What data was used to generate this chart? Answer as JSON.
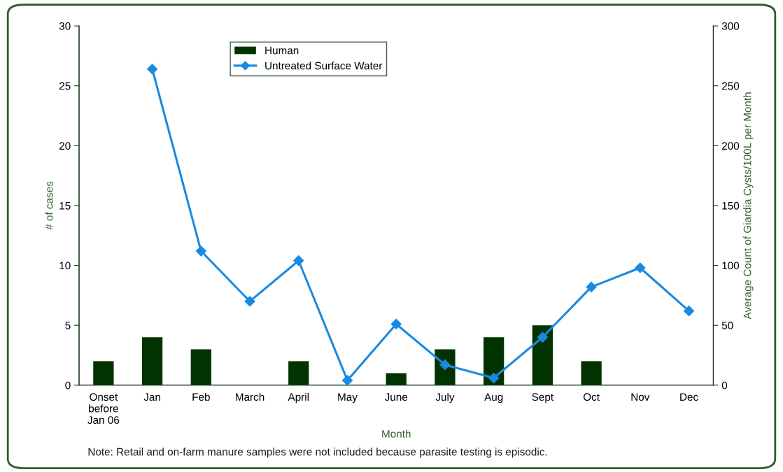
{
  "chart_data": {
    "type": "bar",
    "xlabel": "Month",
    "ylabel": "# of cases",
    "y2label": "Average Count of Giardia Cysts/100L per Month",
    "categories": [
      "Onset\nbefore\nJan 06",
      "Jan",
      "Feb",
      "March",
      "April",
      "May",
      "June",
      "July",
      "Aug",
      "Sept",
      "Oct",
      "Nov",
      "Dec"
    ],
    "series": [
      {
        "name": "Human",
        "color": "#003300",
        "values": [
          2,
          4,
          3,
          0,
          2,
          0,
          1,
          3,
          4,
          5,
          2,
          0,
          0
        ]
      },
      {
        "name": "Untreated Surface Water",
        "type": "line",
        "axis": "y2",
        "color": "#1a8ae0",
        "marker": "diamond",
        "values": [
          null,
          264,
          112,
          70,
          104,
          4,
          51,
          17,
          6,
          40,
          82,
          98,
          62
        ]
      }
    ],
    "ylim": [
      0,
      30
    ],
    "yticks": [
      0,
      5,
      10,
      15,
      20,
      25,
      30
    ],
    "y2lim": [
      0,
      300
    ],
    "y2ticks": [
      0,
      50,
      100,
      150,
      200,
      250,
      300
    ],
    "grid": false,
    "legend": "top left",
    "annotations": [
      "Note: Retail and on-farm manure samples were not included because parasite testing is episodic."
    ]
  }
}
